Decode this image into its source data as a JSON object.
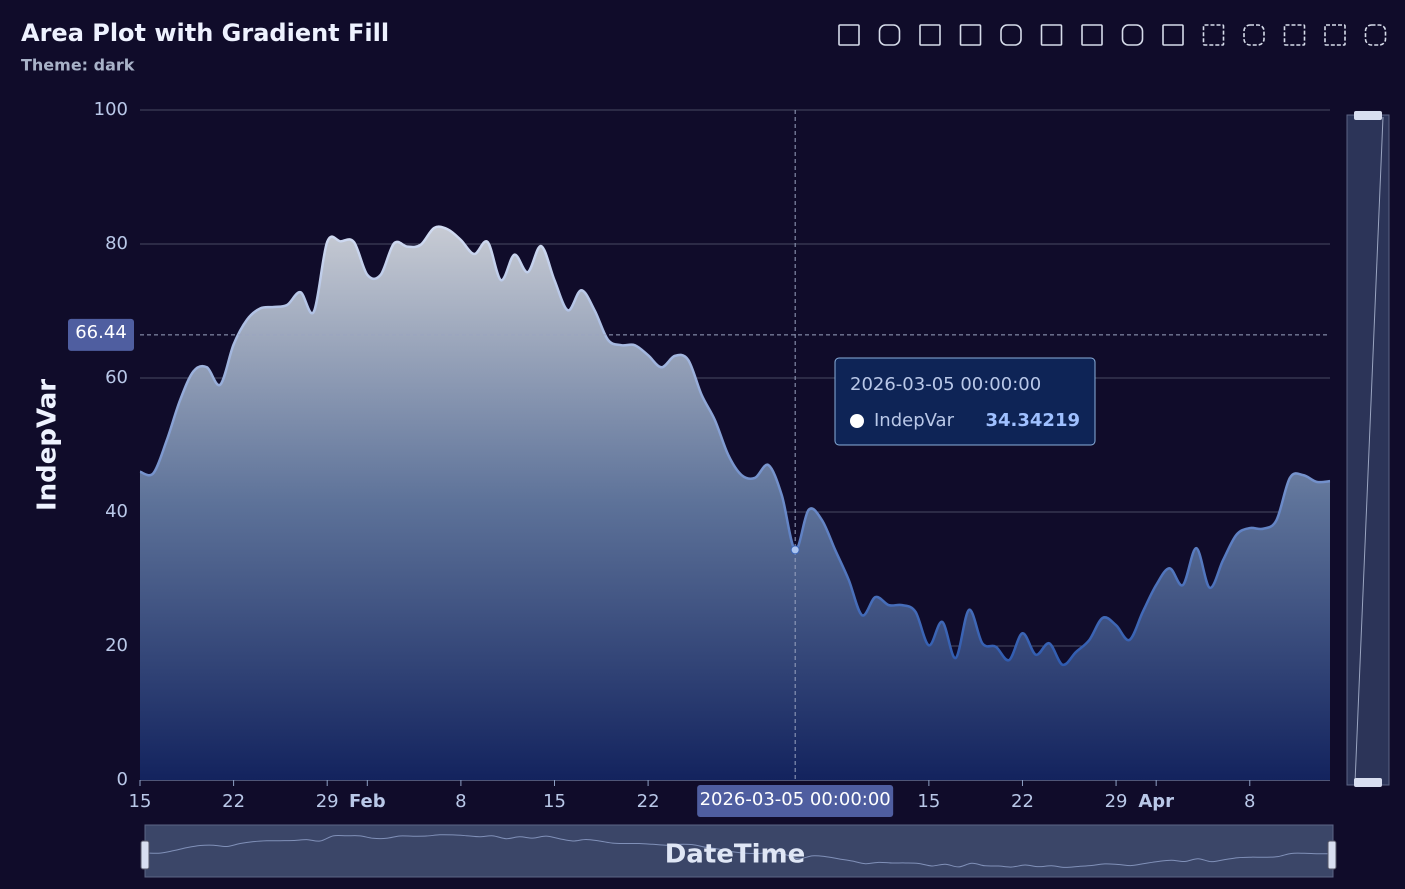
{
  "chart_data": {
    "type": "area",
    "title": "Area Plot with Gradient Fill",
    "subtitle": "Theme: dark",
    "x_label": "DateTime",
    "y_label": "IndepVar",
    "x": [
      "2026-01-15",
      "2026-01-16",
      "2026-01-17",
      "2026-01-18",
      "2026-01-19",
      "2026-01-20",
      "2026-01-21",
      "2026-01-22",
      "2026-01-23",
      "2026-01-24",
      "2026-01-25",
      "2026-01-26",
      "2026-01-27",
      "2026-01-28",
      "2026-01-29",
      "2026-01-30",
      "2026-01-31",
      "2026-02-01",
      "2026-02-02",
      "2026-02-03",
      "2026-02-04",
      "2026-02-05",
      "2026-02-06",
      "2026-02-07",
      "2026-02-08",
      "2026-02-09",
      "2026-02-10",
      "2026-02-11",
      "2026-02-12",
      "2026-02-13",
      "2026-02-14",
      "2026-02-15",
      "2026-02-16",
      "2026-02-17",
      "2026-02-18",
      "2026-02-19",
      "2026-02-20",
      "2026-02-21",
      "2026-02-22",
      "2026-02-23",
      "2026-02-24",
      "2026-02-25",
      "2026-02-26",
      "2026-02-27",
      "2026-02-28",
      "2026-03-01",
      "2026-03-02",
      "2026-03-03",
      "2026-03-04",
      "2026-03-05",
      "2026-03-06",
      "2026-03-07",
      "2026-03-08",
      "2026-03-09",
      "2026-03-10",
      "2026-03-11",
      "2026-03-12",
      "2026-03-13",
      "2026-03-14",
      "2026-03-15",
      "2026-03-16",
      "2026-03-17",
      "2026-03-18",
      "2026-03-19",
      "2026-03-20",
      "2026-03-21",
      "2026-03-22",
      "2026-03-23",
      "2026-03-24",
      "2026-03-25",
      "2026-03-26",
      "2026-03-27",
      "2026-03-28",
      "2026-03-29",
      "2026-03-30",
      "2026-03-31",
      "2026-04-01",
      "2026-04-02",
      "2026-04-03",
      "2026-04-04",
      "2026-04-05",
      "2026-04-06",
      "2026-04-07",
      "2026-04-08",
      "2026-04-09",
      "2026-04-10",
      "2026-04-11",
      "2026-04-12",
      "2026-04-13",
      "2026-04-14"
    ],
    "series": [
      {
        "name": "IndepVar",
        "color": "#d2dcf2",
        "values": [
          46,
          45.8,
          50.7,
          56.7,
          61,
          61.6,
          59,
          65,
          68.7,
          70.4,
          70.6,
          70.9,
          72.8,
          69.9,
          80.3,
          80.4,
          80.3,
          75.4,
          75.4,
          80.1,
          79.6,
          79.9,
          82.4,
          82.2,
          80.6,
          78.5,
          80.3,
          74.6,
          78.4,
          75.8,
          79.7,
          74.6,
          70.1,
          73.1,
          70.1,
          65.7,
          64.9,
          64.9,
          63.4,
          61.6,
          63.3,
          62.7,
          57.5,
          53.7,
          48.5,
          45.5,
          45.1,
          47,
          42.5,
          34.34219,
          40.3,
          38.8,
          34.3,
          29.9,
          24.6,
          27.3,
          26.1,
          26.1,
          25.1,
          20.1,
          23.6,
          18.2,
          25.4,
          20.4,
          19.9,
          17.9,
          21.9,
          18.7,
          20.4,
          17.2,
          19.1,
          20.9,
          24.2,
          23.1,
          20.9,
          25.1,
          29.1,
          31.6,
          29.1,
          34.6,
          28.7,
          32.8,
          36.6,
          37.6,
          37.5,
          38.8,
          45.1,
          45.5,
          44.5,
          44.6
        ]
      }
    ],
    "xlim": [
      "2026-01-15",
      "2026-04-14"
    ],
    "xticks": [
      {
        "value": "2026-01-15",
        "label": "15"
      },
      {
        "value": "2026-01-22",
        "label": "22"
      },
      {
        "value": "2026-01-29",
        "label": "29"
      },
      {
        "value": "2026-02-01",
        "label": "Feb"
      },
      {
        "value": "2026-02-08",
        "label": "8"
      },
      {
        "value": "2026-02-15",
        "label": "15"
      },
      {
        "value": "2026-02-22",
        "label": "22"
      },
      {
        "value": "2026-03-15",
        "label": "15"
      },
      {
        "value": "2026-03-22",
        "label": "22"
      },
      {
        "value": "2026-03-29",
        "label": "29"
      },
      {
        "value": "2026-04-01",
        "label": "Apr"
      },
      {
        "value": "2026-04-08",
        "label": "8"
      }
    ],
    "ylim": [
      0,
      100
    ],
    "yticks": [
      0,
      20,
      40,
      60,
      80,
      100
    ],
    "grid": true,
    "tooltip": {
      "x": "2026-03-05 00:00:00",
      "series": "IndepVar",
      "value": "34.34219"
    },
    "crosshair_y": 66.44
  }
}
